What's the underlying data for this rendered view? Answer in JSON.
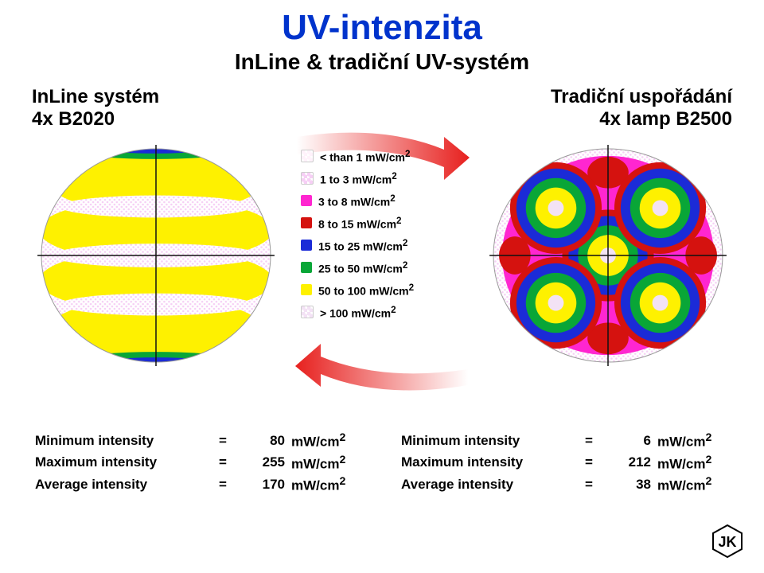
{
  "title": "UV-intenzita",
  "subtitle": "InLine & tradiční UV-systém",
  "left_label_line1": "InLine systém",
  "left_label_line2": "4x B2020",
  "right_label_line1": "Tradiční uspořádání",
  "right_label_line2": "4x lamp B2500",
  "legend": [
    {
      "label": "< than 1 mW/cm",
      "swatch": "#fff2fb",
      "dotted": true
    },
    {
      "label": "1 to 3 mW/cm",
      "swatch": "#f6cff5",
      "dotted": true
    },
    {
      "label": "3 to 8 mW/cm",
      "swatch": "#ff26d0",
      "dotted": false
    },
    {
      "label": "8 to 15 mW/cm",
      "swatch": "#d5120f",
      "dotted": false
    },
    {
      "label": "15 to 25 mW/cm",
      "swatch": "#1b2bd7",
      "dotted": false
    },
    {
      "label": "25 to 50 mW/cm",
      "swatch": "#09a637",
      "dotted": false
    },
    {
      "label": "50 to 100 mW/cm",
      "swatch": "#fef100",
      "dotted": false
    },
    {
      "label": "> 100 mW/cm",
      "swatch": "#f3e2f5",
      "dotted": true
    }
  ],
  "unit_suffix": "mW/cm",
  "unit_super": "2",
  "stats_left": [
    {
      "name": "Minimum intensity",
      "value": "80",
      "unit": "mW/cm"
    },
    {
      "name": "Maximum intensity",
      "value": "255",
      "unit": "mW/cm"
    },
    {
      "name": "Average intensity",
      "value": "170",
      "unit": "mW/cm"
    }
  ],
  "stats_right": [
    {
      "name": "Minimum intensity",
      "value": "6",
      "unit": "mW/cm"
    },
    {
      "name": "Maximum intensity",
      "value": "212",
      "unit": "mW/cm"
    },
    {
      "name": "Average intensity",
      "value": "38",
      "unit": "mW/cm"
    }
  ],
  "colors": {
    "title": "#0033cc",
    "arrow_start": "#ffffff",
    "arrow_end": "#e7201e",
    "band_lavender": "#f6cff5",
    "band_yellow": "#fef100",
    "band_green": "#09a637",
    "band_blue": "#1b2bd7",
    "band_red": "#d5120f",
    "band_magenta": "#ff26d0",
    "band_palepink": "#fff2fb",
    "axis": "#111111"
  },
  "logo_text": "JK"
}
